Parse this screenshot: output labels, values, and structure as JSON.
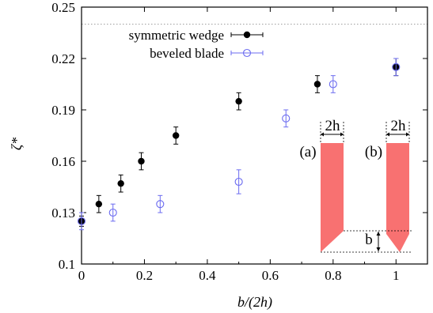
{
  "chart_data": {
    "type": "scatter",
    "xlabel": "b/(2h)",
    "ylabel": "ζ*",
    "xlim": [
      0,
      1.1
    ],
    "ylim": [
      0.1,
      0.25
    ],
    "x_ticks": [
      0,
      0.2,
      0.4,
      0.6,
      0.8,
      1
    ],
    "x_tick_labels": [
      "0",
      "0.2",
      "0.4",
      "0.6",
      "0.8",
      "1"
    ],
    "y_ticks": [
      0.1,
      0.13,
      0.16,
      0.19,
      0.22,
      0.25
    ],
    "y_tick_labels": [
      "0.1",
      "0.13",
      "0.16",
      "0.19",
      "0.22",
      "0.25"
    ],
    "reference_line": {
      "y": 0.24,
      "style": "dotted"
    },
    "legend_position": "top-left",
    "series": [
      {
        "name": "symmetric wedge",
        "marker": "filled-circle",
        "color": "#000000",
        "points": [
          {
            "x": 0.0,
            "y": 0.125,
            "err": 0.003
          },
          {
            "x": 0.055,
            "y": 0.135,
            "err": 0.005
          },
          {
            "x": 0.125,
            "y": 0.147,
            "err": 0.005
          },
          {
            "x": 0.19,
            "y": 0.16,
            "err": 0.005
          },
          {
            "x": 0.3,
            "y": 0.175,
            "err": 0.005
          },
          {
            "x": 0.5,
            "y": 0.195,
            "err": 0.005
          },
          {
            "x": 0.75,
            "y": 0.205,
            "err": 0.005
          },
          {
            "x": 1.0,
            "y": 0.215,
            "err": 0.005
          }
        ]
      },
      {
        "name": "beveled blade",
        "marker": "open-circle",
        "color": "#6b6bf0",
        "points": [
          {
            "x": 0.0,
            "y": 0.125,
            "err": 0.005
          },
          {
            "x": 0.1,
            "y": 0.13,
            "err": 0.005
          },
          {
            "x": 0.25,
            "y": 0.135,
            "err": 0.005
          },
          {
            "x": 0.5,
            "y": 0.148,
            "err": 0.007
          },
          {
            "x": 0.65,
            "y": 0.185,
            "err": 0.005
          },
          {
            "x": 0.8,
            "y": 0.205,
            "err": 0.005
          },
          {
            "x": 1.0,
            "y": 0.215,
            "err": 0.005
          }
        ]
      }
    ],
    "inset": {
      "label_a": "(a)",
      "label_b": "(b)",
      "dimension_label": "2h",
      "bevel_label": "b",
      "fill_color": "#f87171"
    }
  }
}
